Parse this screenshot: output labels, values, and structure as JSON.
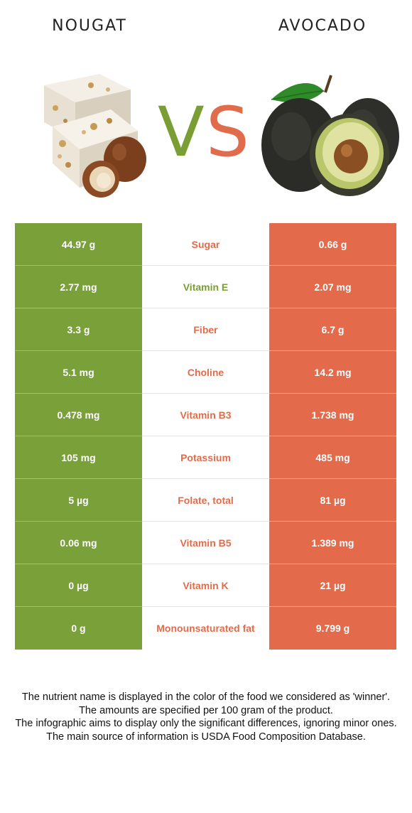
{
  "header": {
    "left_title": "NOUGAT",
    "right_title": "AVOCADO",
    "vs_v": "V",
    "vs_s": "S"
  },
  "colors": {
    "left_food": "#7aa03a",
    "right_food": "#e36b4b"
  },
  "rows": [
    {
      "left": "44.97 g",
      "nutrient": "Sugar",
      "right": "0.66 g",
      "winner": "right"
    },
    {
      "left": "2.77 mg",
      "nutrient": "Vitamin E",
      "right": "2.07 mg",
      "winner": "left"
    },
    {
      "left": "3.3 g",
      "nutrient": "Fiber",
      "right": "6.7 g",
      "winner": "right"
    },
    {
      "left": "5.1 mg",
      "nutrient": "Choline",
      "right": "14.2 mg",
      "winner": "right"
    },
    {
      "left": "0.478 mg",
      "nutrient": "Vitamin B3",
      "right": "1.738 mg",
      "winner": "right"
    },
    {
      "left": "105 mg",
      "nutrient": "Potassium",
      "right": "485 mg",
      "winner": "right"
    },
    {
      "left": "5 µg",
      "nutrient": "Folate, total",
      "right": "81 µg",
      "winner": "right"
    },
    {
      "left": "0.06 mg",
      "nutrient": "Vitamin B5",
      "right": "1.389 mg",
      "winner": "right"
    },
    {
      "left": "0 µg",
      "nutrient": "Vitamin K",
      "right": "21 µg",
      "winner": "right"
    },
    {
      "left": "0 g",
      "nutrient": "Monounsaturated fat",
      "right": "9.799 g",
      "winner": "right"
    }
  ],
  "footnote": {
    "line1": "The nutrient name is displayed in the color of the food we considered as 'winner'.",
    "line2": "The amounts are specified per 100 gram of the product.",
    "line3": "The infographic aims to display only the significant differences, ignoring minor ones.",
    "line4": "The main source of information is USDA Food Composition Database."
  }
}
